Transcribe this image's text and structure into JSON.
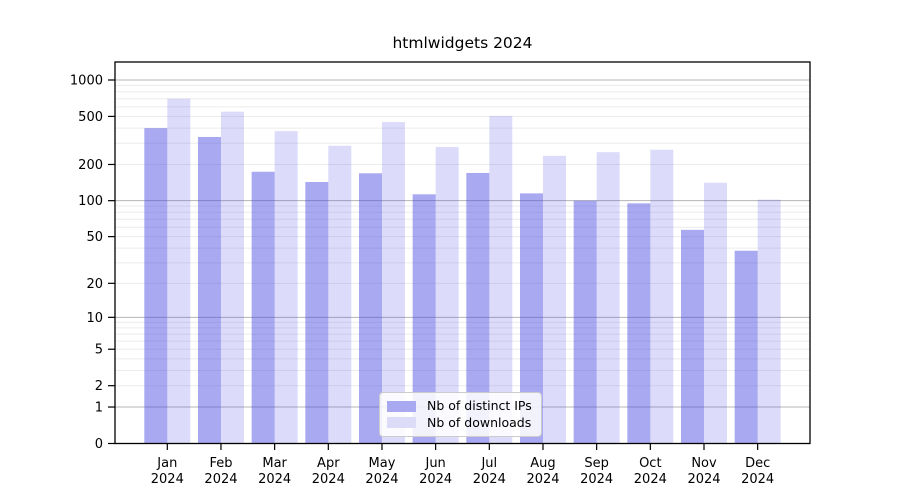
{
  "title": "htmlwidgets 2024",
  "chart_data": {
    "type": "bar",
    "title": "htmlwidgets 2024",
    "categories": [
      "Jan",
      "Feb",
      "Mar",
      "Apr",
      "May",
      "Jun",
      "Jul",
      "Aug",
      "Sep",
      "Oct",
      "Nov",
      "Dec"
    ],
    "year": "2024",
    "series": [
      {
        "name": "Nb of distinct IPs",
        "color": "#a9a9f1",
        "values": [
          400,
          338,
          174,
          143,
          169,
          113,
          170,
          115,
          100,
          95,
          57,
          38
        ]
      },
      {
        "name": "Nb of downloads",
        "color": "#dcdcf8",
        "values": [
          700,
          547,
          378,
          286,
          449,
          279,
          504,
          236,
          253,
          265,
          141,
          102
        ]
      }
    ],
    "yscale": "log1p",
    "yticks": [
      0,
      1,
      2,
      5,
      10,
      20,
      50,
      100,
      200,
      500,
      1000
    ],
    "ylim": [
      0,
      1000
    ],
    "grid": true,
    "legend_position": "lower center inside"
  }
}
